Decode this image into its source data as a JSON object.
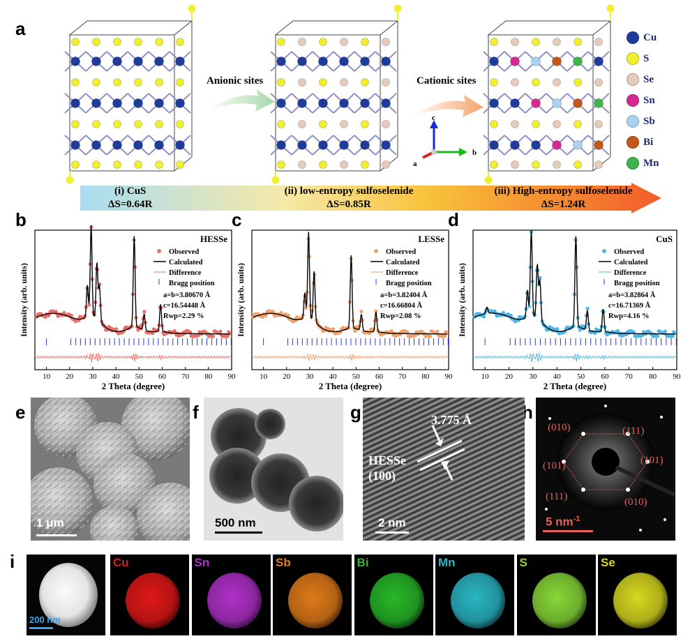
{
  "panels": {
    "a": "a",
    "b": "b",
    "c": "c",
    "d": "d",
    "e": "e",
    "f": "f",
    "g": "g",
    "h": "h",
    "i": "i"
  },
  "panel_a": {
    "arrow1_label": "Anionic sites",
    "arrow2_label": "Cationic sites",
    "axes": {
      "c": "c",
      "b": "b",
      "a": "a"
    },
    "legend": [
      {
        "label": "Cu",
        "color": "#1f3c9a"
      },
      {
        "label": "S",
        "color": "#f2ef2e"
      },
      {
        "label": "Se",
        "color": "#e6cbb8"
      },
      {
        "label": "Sn",
        "color": "#d6288f"
      },
      {
        "label": "Sb",
        "color": "#a9d2ee"
      },
      {
        "label": "Bi",
        "color": "#c2571a"
      },
      {
        "label": "Mn",
        "color": "#3db54a"
      }
    ],
    "entropy": [
      {
        "name": "(i) CuS",
        "ds": "ΔS=0.64R"
      },
      {
        "name": "(ii) low-entropy sulfoselenide",
        "ds": "ΔS=0.85R"
      },
      {
        "name": "(iii) High-entropy sulfoselenide",
        "ds": "ΔS=1.24R"
      }
    ]
  },
  "chart_data": [
    {
      "type": "line",
      "panel": "b",
      "title": "HESSe",
      "xlabel": "2 Theta (degree)",
      "ylabel": "Intensity (arb. units)",
      "xlim": [
        5,
        90
      ],
      "xticks": [
        10,
        20,
        30,
        40,
        50,
        60,
        70,
        80,
        90
      ],
      "color": "#e8706a",
      "legend": [
        "Observed",
        "Calculated",
        "Difference",
        "Bragg position"
      ],
      "params": [
        "a=b=3.80670 Å",
        "c=16.54448 Å",
        "Rwp=2.29 %"
      ],
      "peaks": [
        {
          "x": 27.7,
          "h": 0.35
        },
        {
          "x": 29.3,
          "h": 1.0
        },
        {
          "x": 31.8,
          "h": 0.62
        },
        {
          "x": 32.9,
          "h": 0.38
        },
        {
          "x": 47.9,
          "h": 1.0
        },
        {
          "x": 52.2,
          "h": 0.18
        },
        {
          "x": 59.3,
          "h": 0.3
        }
      ]
    },
    {
      "type": "line",
      "panel": "c",
      "title": "LESSe",
      "xlabel": "2 Theta (degree)",
      "ylabel": "Intensity (arb. units)",
      "xlim": [
        5,
        90
      ],
      "xticks": [
        10,
        20,
        30,
        40,
        50,
        60,
        70,
        80,
        90
      ],
      "color": "#f0a26e",
      "legend": [
        "Observed",
        "Calculated",
        "Difference",
        "Bragg position"
      ],
      "params": [
        "a=b=3.82404 Å",
        "c=16.66804 Å",
        "Rwp=2.08 %"
      ],
      "peaks": [
        {
          "x": 27.9,
          "h": 0.28
        },
        {
          "x": 29.5,
          "h": 0.95
        },
        {
          "x": 31.9,
          "h": 0.55
        },
        {
          "x": 47.9,
          "h": 0.8
        },
        {
          "x": 52.3,
          "h": 0.18
        },
        {
          "x": 58.6,
          "h": 0.22
        }
      ]
    },
    {
      "type": "line",
      "panel": "d",
      "title": "CuS",
      "xlabel": "2 Theta (degree)",
      "ylabel": "Intensity (arb. units)",
      "xlim": [
        5,
        90
      ],
      "xticks": [
        10,
        20,
        30,
        40,
        50,
        60,
        70,
        80,
        90
      ],
      "color": "#4fb6e3",
      "legend": [
        "Observed",
        "Calculated",
        "Difference",
        "Bragg position"
      ],
      "params": [
        "a=b=3.82864 Å",
        "c=16.71369 Å",
        "Rwp=4.16 %"
      ],
      "peaks": [
        {
          "x": 10.8,
          "h": 0.07
        },
        {
          "x": 27.7,
          "h": 0.3
        },
        {
          "x": 29.3,
          "h": 0.95
        },
        {
          "x": 31.8,
          "h": 0.6
        },
        {
          "x": 32.9,
          "h": 0.45
        },
        {
          "x": 47.9,
          "h": 1.0
        },
        {
          "x": 52.7,
          "h": 0.22
        },
        {
          "x": 59.3,
          "h": 0.25
        }
      ]
    }
  ],
  "micrographs": {
    "e_scale": "1 μm",
    "f_scale": "500 nm",
    "g_spacing": "3.775 Å",
    "g_label1": "HESSe",
    "g_label2": "(100)",
    "g_scale": "2 nm",
    "h_scale": "5 nm",
    "h_scale_sup": "-1",
    "h_spots": [
      "(010)",
      "(111)",
      "(101)",
      "(101)",
      "(111)",
      "(010)"
    ]
  },
  "mapping": {
    "haadf_scale": "200 nm",
    "elements": [
      {
        "name": "Cu",
        "color": "#e01818"
      },
      {
        "name": "Sn",
        "color": "#b030c8"
      },
      {
        "name": "Sb",
        "color": "#e07a1a"
      },
      {
        "name": "Bi",
        "color": "#28b82a"
      },
      {
        "name": "Mn",
        "color": "#2ab6c4"
      },
      {
        "name": "S",
        "color": "#88d838"
      },
      {
        "name": "Se",
        "color": "#d8d820"
      }
    ]
  }
}
